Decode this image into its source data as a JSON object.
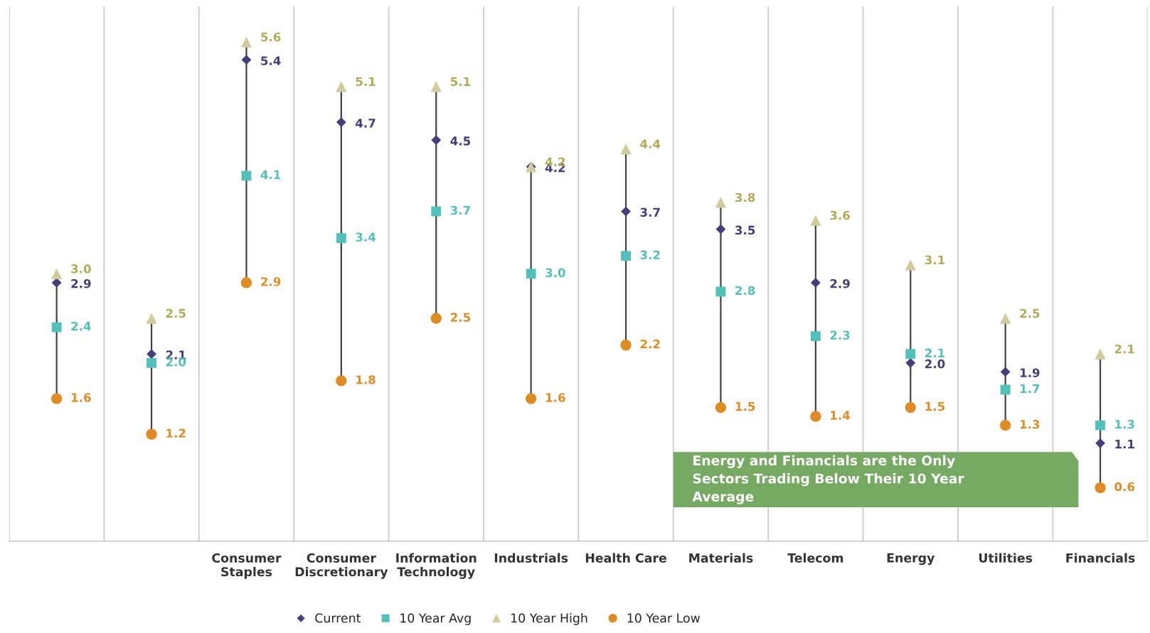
{
  "chart_data": {
    "type": "scatter",
    "categories": [
      null,
      null,
      "Consumer Staples",
      "Consumer Discretionary",
      "Information Technology",
      "Industrials",
      "Health Care",
      "Materials",
      "Telecom",
      "Energy",
      "Utilities",
      "Financials"
    ],
    "series": [
      {
        "name": "Current",
        "color": "#423f7c",
        "marker": "diamond",
        "values": [
          2.9,
          2.1,
          5.4,
          4.7,
          4.5,
          4.2,
          3.7,
          3.5,
          2.9,
          2.0,
          1.9,
          1.1
        ],
        "value_labels": [
          "2.9",
          "2.1",
          "5.4",
          "4.7",
          "4.5",
          "4.2",
          "3.7",
          "3.5",
          "2.9",
          "2.0",
          "1.9",
          "1.1"
        ]
      },
      {
        "name": "10 Year Avg",
        "color": "#52c1b9",
        "marker": "square",
        "values": [
          2.4,
          2.0,
          4.1,
          3.4,
          3.7,
          3.0,
          3.2,
          2.8,
          2.3,
          2.1,
          1.7,
          1.3
        ],
        "value_labels": [
          "2.4",
          "2.0",
          "4.1",
          "3.4",
          "3.7",
          "3.0",
          "3.2",
          "2.8",
          "2.3",
          "2.1",
          "1.7",
          "1.3"
        ]
      },
      {
        "name": "10 Year High",
        "color": "#cfcb9c",
        "marker": "triangle",
        "values": [
          3.0,
          2.5,
          5.6,
          5.1,
          5.1,
          4.2,
          4.4,
          3.8,
          3.6,
          3.1,
          2.5,
          2.1
        ],
        "value_labels": [
          "3.0",
          "2.5",
          "5.6",
          "5.1",
          "5.1",
          "4.2",
          "4.4",
          "3.8",
          "3.6",
          "3.1",
          "2.5",
          "2.1"
        ]
      },
      {
        "name": "10 Year Low",
        "color": "#e08c22",
        "marker": "circle",
        "values": [
          1.6,
          1.2,
          2.9,
          1.8,
          2.5,
          1.6,
          2.2,
          1.5,
          1.4,
          1.5,
          1.3,
          0.6
        ],
        "value_labels": [
          "1.6",
          "1.2",
          "2.9",
          "1.8",
          "2.5",
          "1.6",
          "2.2",
          "1.5",
          "1.4",
          "1.5",
          "1.3",
          "0.6"
        ]
      }
    ],
    "ylim": [
      0,
      6
    ],
    "tick_labels": "x",
    "grid": "x",
    "legend": "bottom",
    "annotations": [
      "Energy and Financials are the Only Sectors Trading Below Their 10 Year Average"
    ]
  }
}
